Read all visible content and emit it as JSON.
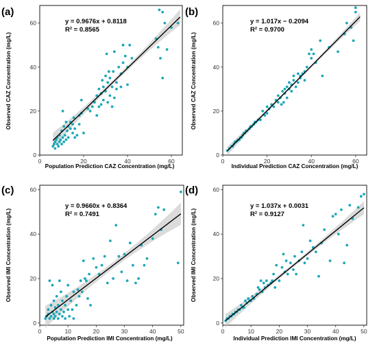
{
  "chart_data": [
    {
      "type": "scatter",
      "panel_label": "(a)",
      "xlabel": "Population Prediction CAZ Concentration (mg/L)",
      "ylabel": "Observed CAZ Concentration (mg/L)",
      "xlim": [
        0,
        65
      ],
      "ylim": [
        0,
        68
      ],
      "xticks": [
        0,
        20,
        40,
        60
      ],
      "yticks": [
        0,
        20,
        40,
        60
      ],
      "equation": "y = 0.9676x + 0.8118",
      "r_squared": "R² = 0.8565",
      "fit": {
        "slope": 0.9676,
        "intercept": 0.8118,
        "x_range": [
          6,
          64
        ]
      },
      "ci_width": [
        1.0,
        3.5
      ],
      "points": [
        [
          6,
          4
        ],
        [
          6.5,
          5
        ],
        [
          7,
          6
        ],
        [
          7,
          3
        ],
        [
          7.5,
          7
        ],
        [
          8,
          5
        ],
        [
          8,
          8
        ],
        [
          8.5,
          4
        ],
        [
          9,
          6
        ],
        [
          9,
          9
        ],
        [
          9.5,
          7
        ],
        [
          10,
          5
        ],
        [
          10,
          11
        ],
        [
          10.5,
          8
        ],
        [
          10.5,
          20
        ],
        [
          11,
          6
        ],
        [
          11,
          13
        ],
        [
          11.5,
          9
        ],
        [
          12,
          7
        ],
        [
          12,
          15
        ],
        [
          12.5,
          11
        ],
        [
          13,
          13
        ],
        [
          13,
          8
        ],
        [
          14,
          12
        ],
        [
          14,
          15
        ],
        [
          15,
          10
        ],
        [
          15,
          14
        ],
        [
          15.5,
          17
        ],
        [
          16,
          12
        ],
        [
          16,
          8
        ],
        [
          17,
          9
        ],
        [
          18,
          14
        ],
        [
          18,
          18
        ],
        [
          19,
          25
        ],
        [
          19,
          19
        ],
        [
          20,
          10
        ],
        [
          22,
          21
        ],
        [
          23,
          20
        ],
        [
          24,
          22
        ],
        [
          25,
          24
        ],
        [
          26,
          27
        ],
        [
          26,
          18
        ],
        [
          27,
          22
        ],
        [
          27,
          30
        ],
        [
          28,
          23
        ],
        [
          28,
          28
        ],
        [
          28.5,
          34
        ],
        [
          29,
          25
        ],
        [
          29,
          31
        ],
        [
          30,
          29
        ],
        [
          30,
          36
        ],
        [
          30.5,
          46
        ],
        [
          31,
          33
        ],
        [
          31,
          24
        ],
        [
          31.5,
          38
        ],
        [
          32,
          27
        ],
        [
          32,
          35
        ],
        [
          33,
          31
        ],
        [
          33,
          22
        ],
        [
          33.5,
          38
        ],
        [
          34,
          26
        ],
        [
          34,
          47
        ],
        [
          35,
          33
        ],
        [
          35,
          30
        ],
        [
          36,
          40
        ],
        [
          37,
          31
        ],
        [
          37,
          37
        ],
        [
          38,
          42
        ],
        [
          38,
          50
        ],
        [
          39,
          45
        ],
        [
          40,
          40
        ],
        [
          40,
          32
        ],
        [
          41,
          50
        ],
        [
          42,
          44
        ],
        [
          53,
          53
        ],
        [
          54,
          49
        ],
        [
          54.5,
          66
        ],
        [
          55,
          44
        ],
        [
          56,
          35
        ],
        [
          56,
          65
        ],
        [
          57,
          60
        ],
        [
          58,
          48
        ],
        [
          60,
          58
        ],
        [
          63,
          60
        ]
      ]
    },
    {
      "type": "scatter",
      "panel_label": "(b)",
      "xlabel": "Individual Prediction CAZ Concentration (mg/L)",
      "ylabel": "Observed CAZ Concentration (mg/L)",
      "xlim": [
        0,
        65
      ],
      "ylim": [
        0,
        68
      ],
      "xticks": [
        0,
        20,
        40,
        60
      ],
      "yticks": [
        0,
        20,
        40,
        60
      ],
      "equation": "y = 1.017x − 0.2094",
      "r_squared": "R² = 0.9700",
      "fit": {
        "slope": 1.017,
        "intercept": -0.2094,
        "x_range": [
          2,
          62
        ]
      },
      "ci_width": [
        0.5,
        2.0
      ],
      "points": [
        [
          2,
          2
        ],
        [
          3,
          3
        ],
        [
          4,
          4
        ],
        [
          4.5,
          4
        ],
        [
          5,
          5
        ],
        [
          5.5,
          6
        ],
        [
          6,
          6
        ],
        [
          6.5,
          6.5
        ],
        [
          7,
          7
        ],
        [
          7.5,
          7
        ],
        [
          8,
          8
        ],
        [
          8.5,
          8
        ],
        [
          9,
          9
        ],
        [
          9.5,
          10
        ],
        [
          10,
          10
        ],
        [
          10.5,
          11
        ],
        [
          11,
          11
        ],
        [
          12,
          12
        ],
        [
          12.5,
          13
        ],
        [
          13,
          13
        ],
        [
          14,
          14
        ],
        [
          14.5,
          15
        ],
        [
          15,
          15
        ],
        [
          16,
          16
        ],
        [
          17,
          16
        ],
        [
          18,
          20
        ],
        [
          19,
          18
        ],
        [
          20,
          19
        ],
        [
          20,
          22
        ],
        [
          21,
          21
        ],
        [
          22,
          23
        ],
        [
          23,
          22
        ],
        [
          24,
          25
        ],
        [
          25,
          24
        ],
        [
          25,
          27
        ],
        [
          26,
          26
        ],
        [
          26.5,
          23
        ],
        [
          27,
          29
        ],
        [
          27.5,
          24
        ],
        [
          28,
          28
        ],
        [
          28,
          30
        ],
        [
          29,
          26
        ],
        [
          29,
          31
        ],
        [
          30,
          30
        ],
        [
          30,
          33
        ],
        [
          31,
          32
        ],
        [
          31,
          29
        ],
        [
          32,
          34
        ],
        [
          32,
          36
        ],
        [
          33,
          31
        ],
        [
          34,
          33
        ],
        [
          34,
          37
        ],
        [
          35,
          36
        ],
        [
          35,
          35
        ],
        [
          36,
          37
        ],
        [
          37,
          38
        ],
        [
          37,
          34
        ],
        [
          38,
          40
        ],
        [
          39,
          46
        ],
        [
          40,
          48
        ],
        [
          40,
          44
        ],
        [
          41,
          46
        ],
        [
          42,
          42
        ],
        [
          44,
          52
        ],
        [
          45,
          36
        ],
        [
          48,
          49
        ],
        [
          52,
          47
        ],
        [
          55,
          55
        ],
        [
          56,
          60
        ],
        [
          58,
          58
        ],
        [
          59,
          52
        ],
        [
          60,
          65
        ],
        [
          60,
          67
        ]
      ]
    },
    {
      "type": "scatter",
      "panel_label": "(c)",
      "xlabel": "Population Prediction IMI Concentration (mg/L)",
      "ylabel": "Observed IMI Concentration (mg/L)",
      "xlim": [
        0,
        51
      ],
      "ylim": [
        -1,
        62
      ],
      "xticks": [
        0,
        10,
        20,
        30,
        40,
        50
      ],
      "yticks": [
        0,
        20,
        40,
        60
      ],
      "equation": "y = 0.9660x + 0.8364",
      "r_squared": "R² = 0.7491",
      "fit": {
        "slope": 0.966,
        "intercept": 0.8364,
        "x_range": [
          2,
          50
        ]
      },
      "ci_width": [
        1.5,
        5.0
      ],
      "points": [
        [
          2,
          2
        ],
        [
          2.5,
          3
        ],
        [
          3,
          4
        ],
        [
          3,
          6
        ],
        [
          3.5,
          2
        ],
        [
          3.5,
          19
        ],
        [
          4,
          3
        ],
        [
          4,
          8
        ],
        [
          4.5,
          5
        ],
        [
          4.5,
          17
        ],
        [
          5,
          2
        ],
        [
          5,
          4
        ],
        [
          5,
          10
        ],
        [
          5.5,
          7
        ],
        [
          5.5,
          3
        ],
        [
          6,
          5
        ],
        [
          6,
          12
        ],
        [
          6.5,
          2
        ],
        [
          6.5,
          8
        ],
        [
          7,
          4
        ],
        [
          7,
          19
        ],
        [
          7.5,
          6
        ],
        [
          7.5,
          14
        ],
        [
          8,
          3
        ],
        [
          8,
          10
        ],
        [
          8.5,
          5
        ],
        [
          9,
          8
        ],
        [
          9,
          2
        ],
        [
          9.5,
          12
        ],
        [
          10,
          6
        ],
        [
          10,
          17
        ],
        [
          10.5,
          3
        ],
        [
          11,
          10
        ],
        [
          11.5,
          6
        ],
        [
          12,
          2
        ],
        [
          12,
          14
        ],
        [
          13,
          8
        ],
        [
          13.5,
          15
        ],
        [
          14,
          12
        ],
        [
          14.5,
          19
        ],
        [
          15,
          14
        ],
        [
          15.5,
          28
        ],
        [
          16,
          20
        ],
        [
          16.5,
          19
        ],
        [
          17,
          11
        ],
        [
          17.5,
          22
        ],
        [
          18,
          8
        ],
        [
          19,
          29
        ],
        [
          20,
          25
        ],
        [
          21,
          22
        ],
        [
          22,
          26
        ],
        [
          23,
          30
        ],
        [
          24,
          18
        ],
        [
          25,
          37
        ],
        [
          26,
          20
        ],
        [
          27,
          44
        ],
        [
          28,
          30
        ],
        [
          29,
          23
        ],
        [
          30,
          31
        ],
        [
          31,
          19
        ],
        [
          32,
          36
        ],
        [
          33,
          26
        ],
        [
          34,
          18
        ],
        [
          35,
          20
        ],
        [
          36,
          35
        ],
        [
          37,
          26
        ],
        [
          38,
          29
        ],
        [
          40,
          38
        ],
        [
          41,
          49
        ],
        [
          42,
          52
        ],
        [
          43,
          42
        ],
        [
          44,
          51
        ],
        [
          49,
          27
        ],
        [
          50,
          59
        ]
      ]
    },
    {
      "type": "scatter",
      "panel_label": "(d)",
      "xlabel": "Individual Prediction IMI Concentration (mg/L)",
      "ylabel": "Observed IMI Concentration (mg/L)",
      "xlim": [
        0,
        51
      ],
      "ylim": [
        -1,
        62
      ],
      "xticks": [
        0,
        10,
        20,
        30,
        40,
        50
      ],
      "yticks": [
        0,
        20,
        40,
        60
      ],
      "equation": "y = 1.037x + 0.0031",
      "r_squared": "R² = 0.9127",
      "fit": {
        "slope": 1.037,
        "intercept": 0.0031,
        "x_range": [
          1,
          50
        ]
      },
      "ci_width": [
        0.8,
        3.0
      ],
      "points": [
        [
          1,
          1
        ],
        [
          1.5,
          2
        ],
        [
          2,
          2
        ],
        [
          2.5,
          3
        ],
        [
          3,
          3
        ],
        [
          3.5,
          4
        ],
        [
          4,
          4
        ],
        [
          4.5,
          5
        ],
        [
          5,
          5
        ],
        [
          5.5,
          6
        ],
        [
          6,
          6
        ],
        [
          6.5,
          8
        ],
        [
          7,
          7
        ],
        [
          7.5,
          7
        ],
        [
          8,
          10
        ],
        [
          8.5,
          9
        ],
        [
          9,
          11
        ],
        [
          9.5,
          10
        ],
        [
          10,
          10
        ],
        [
          10.5,
          12
        ],
        [
          11,
          11
        ],
        [
          12,
          13
        ],
        [
          12.5,
          16
        ],
        [
          13,
          15
        ],
        [
          13.5,
          19
        ],
        [
          14,
          14
        ],
        [
          14.5,
          18
        ],
        [
          15,
          16
        ],
        [
          15.5,
          19
        ],
        [
          16,
          17
        ],
        [
          17,
          18
        ],
        [
          17.5,
          19
        ],
        [
          18,
          22
        ],
        [
          18.5,
          16
        ],
        [
          19,
          26
        ],
        [
          20,
          19
        ],
        [
          21,
          25
        ],
        [
          21.5,
          31
        ],
        [
          22,
          23
        ],
        [
          22.5,
          28
        ],
        [
          23,
          22
        ],
        [
          24,
          27
        ],
        [
          25,
          24
        ],
        [
          25.5,
          30
        ],
        [
          26,
          22
        ],
        [
          27,
          28
        ],
        [
          28,
          32
        ],
        [
          28.5,
          44
        ],
        [
          29,
          27
        ],
        [
          30,
          29
        ],
        [
          31,
          37
        ],
        [
          32,
          34
        ],
        [
          33,
          32
        ],
        [
          34,
          21
        ],
        [
          35,
          36
        ],
        [
          36,
          42
        ],
        [
          38,
          28
        ],
        [
          39,
          48
        ],
        [
          40,
          49
        ],
        [
          41,
          40
        ],
        [
          42,
          51
        ],
        [
          43,
          27
        ],
        [
          44,
          35
        ],
        [
          45,
          53
        ],
        [
          46,
          47
        ],
        [
          48,
          52
        ],
        [
          49,
          57
        ],
        [
          50,
          58
        ]
      ]
    }
  ],
  "colors": {
    "point": "#1aa7b8",
    "fit_line": "#000000",
    "ci_band": "#bdbdbd"
  }
}
